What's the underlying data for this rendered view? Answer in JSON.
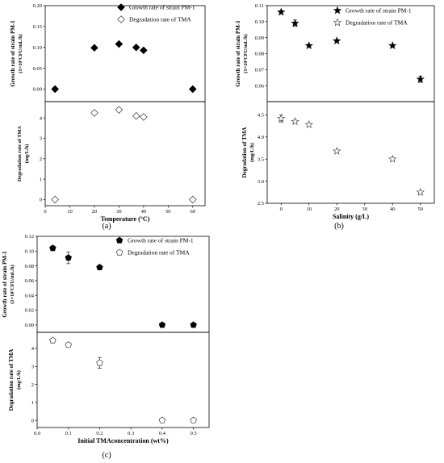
{
  "chart_data": [
    {
      "panel_label": "(a)",
      "type": "scatter",
      "xlabel": "Temperature (°C)",
      "xlim": [
        0,
        65
      ],
      "xticks": [
        0,
        10,
        20,
        30,
        40,
        50,
        60
      ],
      "top": {
        "ylabel_line1": "Growth rate of strain PM-1",
        "ylabel_line2": "(1×10⁷CFU/mL/h)",
        "ylim": [
          -0.03,
          0.2
        ],
        "yticks": [
          "0.00",
          "0.05",
          "0.10",
          "0.15",
          "0.20"
        ],
        "ytick_values": [
          0,
          0.05,
          0.1,
          0.15,
          0.2
        ]
      },
      "bottom": {
        "ylabel_line1": "Degradation rate of TMA",
        "ylabel_line2": "(mg/L/h)",
        "ylim": [
          -0.3,
          4.8
        ],
        "yticks": [
          "0",
          "1",
          "2",
          "3",
          "4"
        ],
        "ytick_values": [
          0,
          1,
          2,
          3,
          4
        ]
      },
      "legend": [
        "Growth rate of strain PM-1",
        "Degradation rate of TMA"
      ],
      "series": [
        {
          "name": "Growth rate of strain PM-1",
          "marker": "diamond-filled",
          "axis": "top",
          "x": [
            4,
            20,
            30,
            37,
            40,
            60
          ],
          "y": [
            0.0,
            0.099,
            0.108,
            0.1,
            0.093,
            0.0
          ],
          "err": [
            0.001,
            0.002,
            0.002,
            0.002,
            0.002,
            0.001
          ]
        },
        {
          "name": "Degradation rate of TMA",
          "marker": "diamond-open",
          "axis": "bottom",
          "x": [
            4,
            20,
            30,
            37,
            40,
            60
          ],
          "y": [
            0.0,
            4.25,
            4.4,
            4.1,
            4.05,
            0.0
          ],
          "err": [
            0.02,
            0.05,
            0.04,
            0.04,
            0.04,
            0.02
          ]
        }
      ]
    },
    {
      "panel_label": "(b)",
      "type": "scatter",
      "xlabel": "Salinity (g/L)",
      "xlim": [
        -5,
        55
      ],
      "xticks": [
        0,
        10,
        20,
        30,
        40,
        50
      ],
      "top": {
        "ylabel_line1": "Growth rate of strain PM-1",
        "ylabel_line2": "(1×10⁷CFU/mL/h)",
        "ylim": [
          0.05,
          0.11
        ],
        "yticks": [
          "0.06",
          "0.07",
          "0.08",
          "0.09",
          "0.10",
          "0.11"
        ],
        "ytick_values": [
          0.06,
          0.07,
          0.08,
          0.09,
          0.1,
          0.11
        ]
      },
      "bottom": {
        "ylabel_line1": "Degradation of TMA",
        "ylabel_line2": "(mg/L/h)",
        "ylim": [
          2.5,
          4.8
        ],
        "yticks": [
          "2.5",
          "3.0",
          "3.5",
          "4.0",
          "4.5"
        ],
        "ytick_values": [
          2.5,
          3.0,
          3.5,
          4.0,
          4.5
        ]
      },
      "legend": [
        "Growth rate of strain PM-1",
        "Degradation rate of TMA"
      ],
      "series": [
        {
          "name": "Growth rate of strain PM-1",
          "marker": "star-filled",
          "axis": "top",
          "x": [
            0,
            5,
            10,
            20,
            40,
            50
          ],
          "y": [
            0.106,
            0.099,
            0.085,
            0.088,
            0.085,
            0.064
          ],
          "err": [
            0.001,
            0.002,
            0.0005,
            0.0005,
            0.0005,
            0.002
          ]
        },
        {
          "name": "Degradation rate of TMA",
          "marker": "star-open",
          "axis": "bottom",
          "x": [
            0,
            5,
            10,
            20,
            40,
            50
          ],
          "y": [
            4.42,
            4.35,
            4.28,
            3.68,
            3.5,
            2.75
          ],
          "err": [
            0.08,
            0.03,
            0.03,
            0.02,
            0.02,
            0.02
          ]
        }
      ]
    },
    {
      "panel_label": "(c)",
      "type": "scatter",
      "xlabel": "Initial TMAconcentration (wt%)",
      "xlim": [
        0.0,
        0.55
      ],
      "xticks": [
        "0.0",
        "0.1",
        "0.2",
        "0.3",
        "0.4",
        "0.5"
      ],
      "xtick_values": [
        0,
        0.1,
        0.2,
        0.3,
        0.4,
        0.5
      ],
      "top": {
        "ylabel_line1": "Growth rate of strain PM-1",
        "ylabel_line2": "(1×10⁷CFU/mL/h)",
        "ylim": [
          -0.01,
          0.12
        ],
        "yticks": [
          "0.00",
          "0.02",
          "0.04",
          "0.06",
          "0.08",
          "0.10",
          "0.12"
        ],
        "ytick_values": [
          0,
          0.02,
          0.04,
          0.06,
          0.08,
          0.1,
          0.12
        ]
      },
      "bottom": {
        "ylabel_line1": "Degradation rate of TMA",
        "ylabel_line2": "(mg/L/h)",
        "ylim": [
          -0.4,
          4.9
        ],
        "yticks": [
          "0",
          "1",
          "2",
          "3",
          "4"
        ],
        "ytick_values": [
          0,
          1,
          2,
          3,
          4
        ]
      },
      "legend": [
        "Growth rate of strain PM-1",
        "Degradation rate of TMA"
      ],
      "series": [
        {
          "name": "Growth rate of strain PM-1",
          "marker": "pentagon-filled",
          "axis": "top",
          "x": [
            0.05,
            0.1,
            0.2,
            0.4,
            0.5
          ],
          "y": [
            0.104,
            0.091,
            0.078,
            0.0,
            0.0
          ],
          "err": [
            0.003,
            0.008,
            0.002,
            0.001,
            0.001
          ]
        },
        {
          "name": "Degradation rate of TMA",
          "marker": "pentagon-open",
          "axis": "bottom",
          "x": [
            0.05,
            0.1,
            0.2,
            0.4,
            0.5
          ],
          "y": [
            4.45,
            4.2,
            3.2,
            0.0,
            0.0
          ],
          "err": [
            0.05,
            0.12,
            0.3,
            0.02,
            0.02
          ]
        }
      ]
    }
  ]
}
